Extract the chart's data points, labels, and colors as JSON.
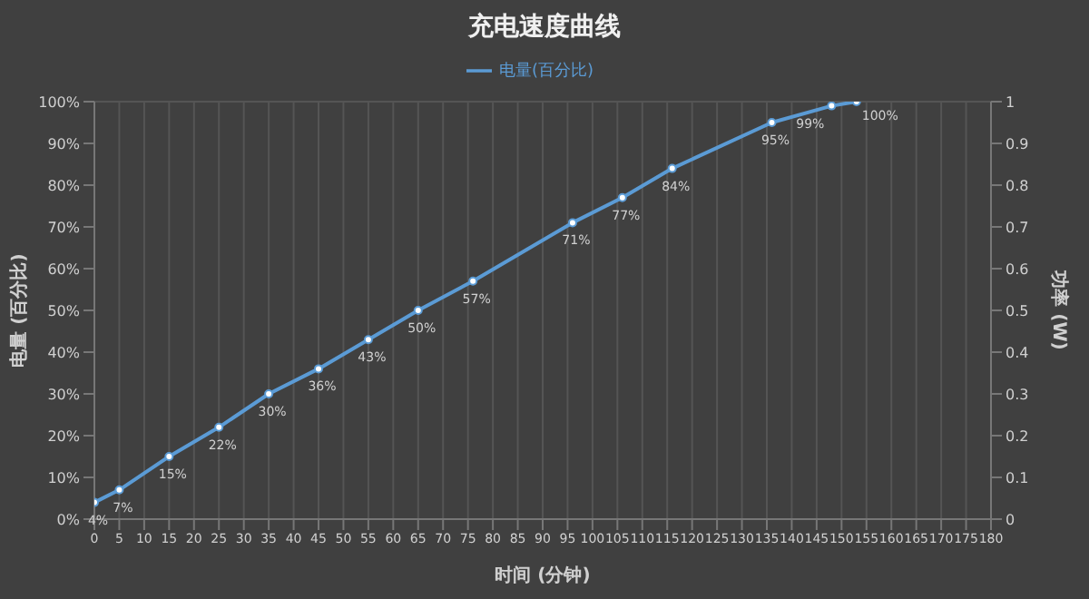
{
  "chart_data": {
    "type": "line",
    "title": "充电速度曲线",
    "xlabel": "时间 (分钟)",
    "ylabel": "电量 (百分比)",
    "y2label": "功率 (W)",
    "x": [
      0,
      5,
      15,
      25,
      35,
      45,
      55,
      65,
      76,
      96,
      106,
      116,
      136,
      148,
      153
    ],
    "series": [
      {
        "name": "电量(百分比)",
        "color": "#5b9bd5",
        "values": [
          4,
          7,
          15,
          22,
          30,
          36,
          43,
          50,
          57,
          71,
          77,
          84,
          95,
          99,
          100
        ],
        "value_labels": [
          "4%",
          "7%",
          "15%",
          "22%",
          "30%",
          "36%",
          "43%",
          "50%",
          "57%",
          "71%",
          "77%",
          "84%",
          "95%",
          "99%",
          "100%"
        ]
      }
    ],
    "xlim": [
      0,
      180
    ],
    "xticks": [
      0,
      5,
      10,
      15,
      20,
      25,
      30,
      35,
      40,
      45,
      50,
      55,
      60,
      65,
      70,
      75,
      80,
      85,
      90,
      95,
      100,
      105,
      110,
      115,
      120,
      125,
      130,
      135,
      140,
      145,
      150,
      155,
      160,
      165,
      170,
      175,
      180
    ],
    "ylim": [
      0,
      100
    ],
    "yticks": [
      {
        "value": 0,
        "label": "0%"
      },
      {
        "value": 10,
        "label": "10%"
      },
      {
        "value": 20,
        "label": "20%"
      },
      {
        "value": 30,
        "label": "30%"
      },
      {
        "value": 40,
        "label": "40%"
      },
      {
        "value": 50,
        "label": "50%"
      },
      {
        "value": 60,
        "label": "60%"
      },
      {
        "value": 70,
        "label": "70%"
      },
      {
        "value": 80,
        "label": "80%"
      },
      {
        "value": 90,
        "label": "90%"
      },
      {
        "value": 100,
        "label": "100%"
      }
    ],
    "y2lim": [
      0,
      1
    ],
    "y2ticks": [
      0,
      0.1,
      0.2,
      0.3,
      0.4,
      0.5,
      0.6,
      0.7,
      0.8,
      0.9,
      1
    ],
    "grid": true,
    "legend": "top",
    "marker": "circle",
    "line_style": "solid"
  }
}
